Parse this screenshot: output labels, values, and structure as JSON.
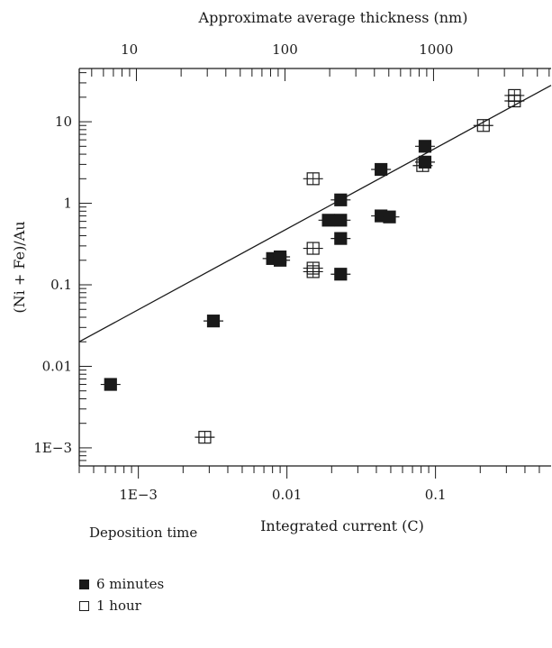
{
  "chart_data": {
    "type": "scatter",
    "x_scale": "log",
    "y_scale": "log",
    "xlim": [
      0.0004,
      0.6
    ],
    "ylim": [
      0.0006,
      45
    ],
    "top_axis": {
      "label": "Approximate average thickness (nm)",
      "ticks": [
        {
          "label": "10",
          "x": 0.00087
        },
        {
          "label": "100",
          "x": 0.0097
        },
        {
          "label": "1000",
          "x": 0.101
        }
      ]
    },
    "xlabel": "Integrated current (C)",
    "ylabel": "(Ni + Fe)/Au",
    "x_ticks": [
      {
        "label": "1E−3",
        "value": 0.001
      },
      {
        "label": "0.01",
        "value": 0.01
      },
      {
        "label": "0.1",
        "value": 0.1
      }
    ],
    "y_ticks": [
      {
        "label": "1E−3",
        "value": 0.001
      },
      {
        "label": "0.01",
        "value": 0.01
      },
      {
        "label": "0.1",
        "value": 0.1
      },
      {
        "label": "1",
        "value": 1
      },
      {
        "label": "10",
        "value": 10
      }
    ],
    "legend_title": "Deposition time",
    "legend_position": "bottom-left",
    "series": [
      {
        "name": "6 minutes",
        "marker": "filled-square",
        "color": "#1a1a1a",
        "points": [
          {
            "x": 0.00065,
            "y": 0.006
          },
          {
            "x": 0.0032,
            "y": 0.036
          },
          {
            "x": 0.008,
            "y": 0.21
          },
          {
            "x": 0.009,
            "y": 0.22
          },
          {
            "x": 0.009,
            "y": 0.2
          },
          {
            "x": 0.019,
            "y": 0.62
          },
          {
            "x": 0.023,
            "y": 1.1
          },
          {
            "x": 0.023,
            "y": 0.62
          },
          {
            "x": 0.023,
            "y": 0.37
          },
          {
            "x": 0.023,
            "y": 0.135
          },
          {
            "x": 0.043,
            "y": 2.6
          },
          {
            "x": 0.043,
            "y": 0.7
          },
          {
            "x": 0.049,
            "y": 0.68
          },
          {
            "x": 0.085,
            "y": 5.0
          },
          {
            "x": 0.085,
            "y": 3.2
          }
        ]
      },
      {
        "name": "1 hour",
        "marker": "open-square",
        "color": "#1a1a1a",
        "points": [
          {
            "x": 0.0028,
            "y": 0.00135
          },
          {
            "x": 0.015,
            "y": 2.0
          },
          {
            "x": 0.015,
            "y": 0.28
          },
          {
            "x": 0.015,
            "y": 0.16
          },
          {
            "x": 0.015,
            "y": 0.145
          },
          {
            "x": 0.082,
            "y": 2.9
          },
          {
            "x": 0.21,
            "y": 9.0
          },
          {
            "x": 0.34,
            "y": 21
          },
          {
            "x": 0.34,
            "y": 18
          }
        ]
      }
    ],
    "fit_line": {
      "from": {
        "x": 0.0004,
        "y": 0.02
      },
      "to": {
        "x": 0.6,
        "y": 28
      }
    }
  }
}
